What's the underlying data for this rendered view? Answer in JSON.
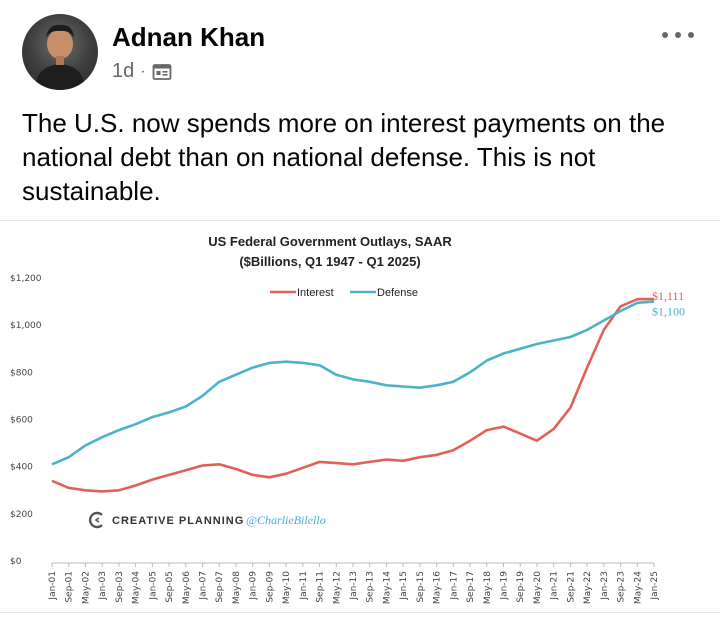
{
  "post": {
    "author": "Adnan Khan",
    "time": "1d",
    "separator": "·",
    "audience_icon": "page-icon",
    "more_icon": "more-options-icon",
    "text": "The U.S. now spends more on interest payments on the national debt than on national defense. This is not sustainable."
  },
  "chart_data": {
    "type": "line",
    "title": "US Federal Government Outlays, SAAR",
    "subtitle": "($Billions, Q1 1947 - Q1 2025)",
    "ylim": [
      0,
      1200
    ],
    "yticks": [
      "$0",
      "$200",
      "$400",
      "$600",
      "$800",
      "$1,000",
      "$1,200"
    ],
    "x": [
      "Jan-01",
      "Sep-01",
      "May-02",
      "Jan-03",
      "Sep-03",
      "May-04",
      "Jan-05",
      "Sep-05",
      "May-06",
      "Jan-07",
      "Sep-07",
      "May-08",
      "Jan-09",
      "Sep-09",
      "May-10",
      "Jan-11",
      "Sep-11",
      "May-12",
      "Jan-13",
      "Sep-13",
      "May-14",
      "Jan-15",
      "Sep-15",
      "May-16",
      "Jan-17",
      "Sep-17",
      "May-18",
      "Jan-19",
      "Sep-19",
      "May-20",
      "Jan-21",
      "Sep-21",
      "May-22",
      "Jan-23",
      "Sep-23",
      "May-24",
      "Jan-25"
    ],
    "series": [
      {
        "name": "Interest",
        "color": "#e0605a",
        "values": [
          340,
          310,
          300,
          295,
          300,
          320,
          345,
          365,
          385,
          405,
          410,
          390,
          365,
          355,
          370,
          395,
          420,
          415,
          410,
          420,
          430,
          425,
          440,
          450,
          470,
          510,
          555,
          570,
          540,
          510,
          560,
          650,
          820,
          980,
          1080,
          1110,
          1111
        ]
      },
      {
        "name": "Defense",
        "color": "#4bb3c8",
        "values": [
          410,
          440,
          490,
          525,
          555,
          580,
          610,
          630,
          655,
          700,
          760,
          790,
          820,
          840,
          845,
          840,
          830,
          790,
          770,
          760,
          745,
          740,
          735,
          745,
          760,
          800,
          850,
          880,
          900,
          920,
          935,
          950,
          980,
          1020,
          1060,
          1095,
          1100
        ]
      }
    ],
    "end_labels": {
      "interest": "$1,111",
      "defense": "$1,100"
    },
    "legend": [
      "Interest",
      "Defense"
    ],
    "legend_position": "top-center",
    "grid": false,
    "watermark_brand": "CREATIVE PLANNING",
    "watermark_handle": "@CharlieBilello"
  }
}
